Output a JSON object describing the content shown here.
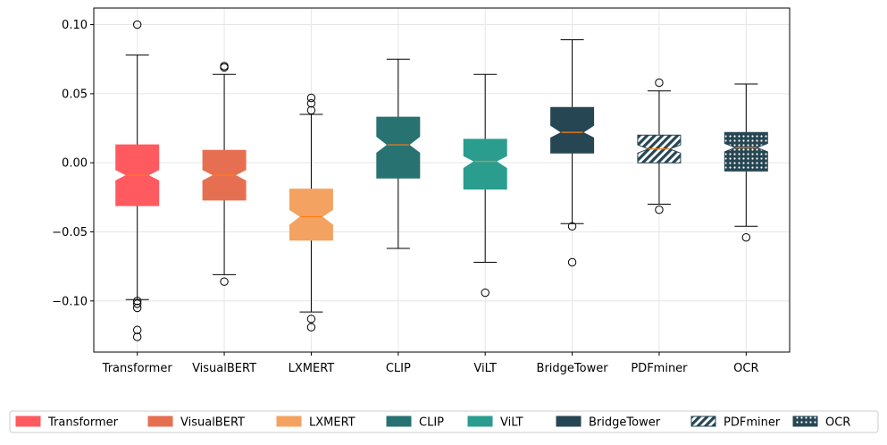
{
  "chart_data": {
    "type": "boxplot",
    "title": "",
    "xlabel": "",
    "ylabel": "",
    "ylim": [
      -0.137,
      0.112
    ],
    "yticks": [
      -0.1,
      -0.05,
      0.0,
      0.05,
      0.1
    ],
    "ytick_labels": [
      "−0.10",
      "−0.05",
      "0.00",
      "0.05",
      "0.10"
    ],
    "grid": true,
    "notched": true,
    "legend_position": "bottom",
    "median_color": "#ff7f0e",
    "series": [
      {
        "name": "Transformer",
        "color": "#ff5a5f",
        "pattern": "none",
        "whisker_low": -0.099,
        "q1": -0.031,
        "median": -0.009,
        "q3": 0.013,
        "whisker_high": 0.078,
        "notch_low": -0.013,
        "notch_high": -0.005,
        "outliers": [
          0.1,
          -0.1,
          -0.102,
          -0.105,
          -0.121,
          -0.126
        ]
      },
      {
        "name": "VisualBERT",
        "color": "#e76f51",
        "pattern": "none",
        "whisker_low": -0.081,
        "q1": -0.027,
        "median": -0.009,
        "q3": 0.009,
        "whisker_high": 0.064,
        "notch_low": -0.013,
        "notch_high": -0.005,
        "outliers": [
          0.069,
          0.07,
          -0.086
        ]
      },
      {
        "name": "LXMERT",
        "color": "#f4a261",
        "pattern": "none",
        "whisker_low": -0.108,
        "q1": -0.056,
        "median": -0.039,
        "q3": -0.019,
        "whisker_high": 0.035,
        "notch_low": -0.045,
        "notch_high": -0.034,
        "outliers": [
          0.047,
          0.043,
          0.038,
          -0.113,
          -0.119
        ]
      },
      {
        "name": "CLIP",
        "color": "#287271",
        "pattern": "none",
        "whisker_low": -0.062,
        "q1": -0.011,
        "median": 0.013,
        "q3": 0.033,
        "whisker_high": 0.075,
        "notch_low": 0.007,
        "notch_high": 0.019,
        "outliers": []
      },
      {
        "name": "ViLT",
        "color": "#2a9d8f",
        "pattern": "none",
        "whisker_low": -0.072,
        "q1": -0.019,
        "median": 0.001,
        "q3": 0.017,
        "whisker_high": 0.064,
        "notch_low": -0.004,
        "notch_high": 0.005,
        "outliers": [
          -0.094
        ]
      },
      {
        "name": "BridgeTower",
        "color": "#264653",
        "pattern": "none",
        "whisker_low": -0.044,
        "q1": 0.007,
        "median": 0.022,
        "q3": 0.04,
        "whisker_high": 0.089,
        "notch_low": 0.018,
        "notch_high": 0.027,
        "outliers": [
          -0.046,
          -0.072
        ]
      },
      {
        "name": "PDFminer",
        "color": "#264653",
        "pattern": "diagonal",
        "whisker_low": -0.03,
        "q1": 0.0,
        "median": 0.01,
        "q3": 0.02,
        "whisker_high": 0.052,
        "notch_low": 0.007,
        "notch_high": 0.013,
        "outliers": [
          0.058,
          -0.034
        ]
      },
      {
        "name": "OCR",
        "color": "#264653",
        "pattern": "dots",
        "whisker_low": -0.046,
        "q1": -0.006,
        "median": 0.011,
        "q3": 0.022,
        "whisker_high": 0.057,
        "notch_low": 0.008,
        "notch_high": 0.014,
        "outliers": [
          -0.054
        ]
      }
    ]
  }
}
